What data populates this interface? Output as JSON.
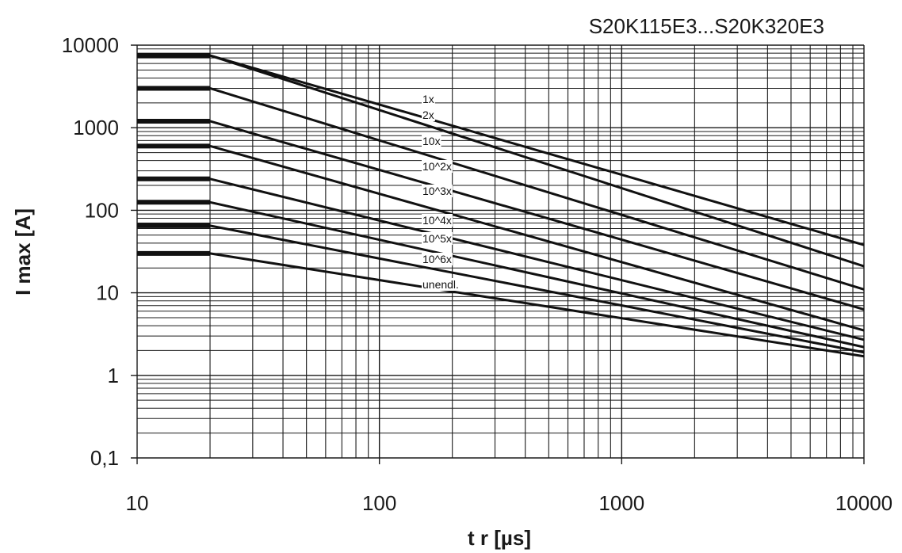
{
  "chart_data": {
    "type": "line",
    "title": "S20K115E3...S20K320E3",
    "xlabel": "t r  [µs]",
    "ylabel": "I max [A]",
    "x_scale": "log",
    "y_scale": "log",
    "xlim": [
      10,
      10000
    ],
    "ylim": [
      0.1,
      10000
    ],
    "x_ticks": [
      10,
      100,
      1000,
      10000
    ],
    "x_tick_labels": [
      "10",
      "100",
      "1000",
      "10000"
    ],
    "y_ticks": [
      0.1,
      1,
      10,
      100,
      1000,
      10000
    ],
    "y_tick_labels": [
      "0,1",
      "1",
      "10",
      "100",
      "1000",
      "10000"
    ],
    "grid": true,
    "line_color": "#111111",
    "series": [
      {
        "name": "1x",
        "x": [
          10,
          20,
          10000
        ],
        "y": [
          7500,
          7500,
          38
        ]
      },
      {
        "name": "2x",
        "x": [
          10,
          20,
          10000
        ],
        "y": [
          7500,
          7500,
          21
        ]
      },
      {
        "name": "10x",
        "x": [
          10,
          20,
          10000
        ],
        "y": [
          3000,
          3000,
          11
        ]
      },
      {
        "name": "10^2x",
        "x": [
          10,
          20,
          10000
        ],
        "y": [
          1200,
          1200,
          6.3
        ]
      },
      {
        "name": "10^3x",
        "x": [
          10,
          20,
          10000
        ],
        "y": [
          600,
          600,
          3.5
        ]
      },
      {
        "name": "10^4x",
        "x": [
          10,
          20,
          10000
        ],
        "y": [
          240,
          240,
          2.7
        ]
      },
      {
        "name": "10^5x",
        "x": [
          10,
          20,
          10000
        ],
        "y": [
          125,
          125,
          2.2
        ]
      },
      {
        "name": "10^6x",
        "x": [
          10,
          20,
          10000
        ],
        "y": [
          65,
          65,
          1.9
        ]
      },
      {
        "name": "unendl.",
        "x": [
          10,
          20,
          10000
        ],
        "y": [
          30,
          30,
          1.7
        ]
      }
    ]
  }
}
